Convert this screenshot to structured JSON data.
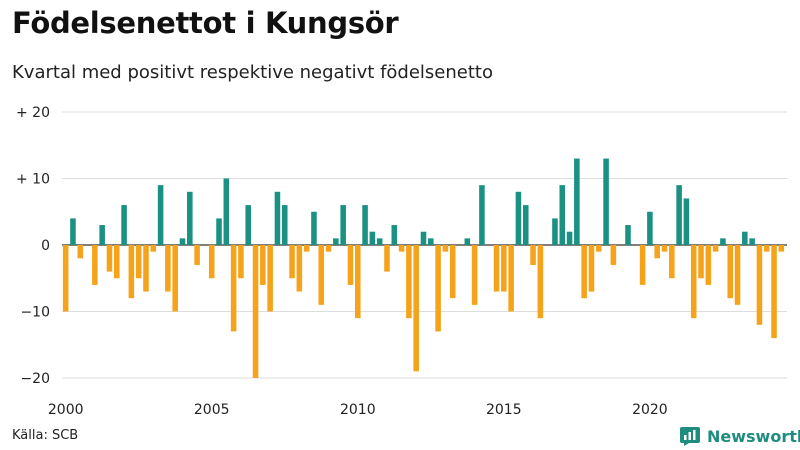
{
  "title": "Födelsenettot i Kungsör",
  "subtitle": "Kvartal med positivt respektive negativt födelsenetto",
  "source": "Källa: SCB",
  "brand": "Newsworthy",
  "colors": {
    "positive": "#1a9183",
    "negative": "#f5a31a",
    "grid": "#dddddd",
    "zero": "#333333",
    "brand": "#1f8c80"
  },
  "chart_data": {
    "type": "bar",
    "ylim": [
      -20,
      20
    ],
    "y_ticks": [
      20,
      10,
      0,
      -10,
      -20
    ],
    "y_tick_labels": [
      "+ 20",
      "+ 10",
      "0",
      "−10",
      "−20"
    ],
    "x_tick_labels": [
      "2000",
      "2005",
      "2010",
      "2015",
      "2020"
    ],
    "grid": true,
    "start_period": "2000 Q1",
    "values": [
      -10,
      4,
      -2,
      0,
      -6,
      3,
      -4,
      -5,
      6,
      -8,
      -5,
      -7,
      -1,
      9,
      -7,
      -10,
      1,
      8,
      -3,
      0,
      -5,
      4,
      10,
      -13,
      -5,
      6,
      -20,
      -6,
      -10,
      8,
      6,
      -5,
      -7,
      -1,
      5,
      -9,
      -1,
      1,
      6,
      -6,
      -11,
      6,
      2,
      1,
      -4,
      3,
      -1,
      -11,
      -19,
      2,
      1,
      -13,
      -1,
      -8,
      0,
      1,
      -9,
      9,
      0,
      -7,
      -7,
      -10,
      8,
      6,
      -3,
      -11,
      0,
      4,
      9,
      2,
      13,
      -8,
      -7,
      -1,
      13,
      -3,
      0,
      3,
      0,
      -6,
      5,
      -2,
      -1,
      -5,
      9,
      7,
      -11,
      -5,
      -6,
      -1,
      1,
      -8,
      -9,
      2,
      1,
      -12,
      -1,
      -14,
      -1
    ]
  }
}
